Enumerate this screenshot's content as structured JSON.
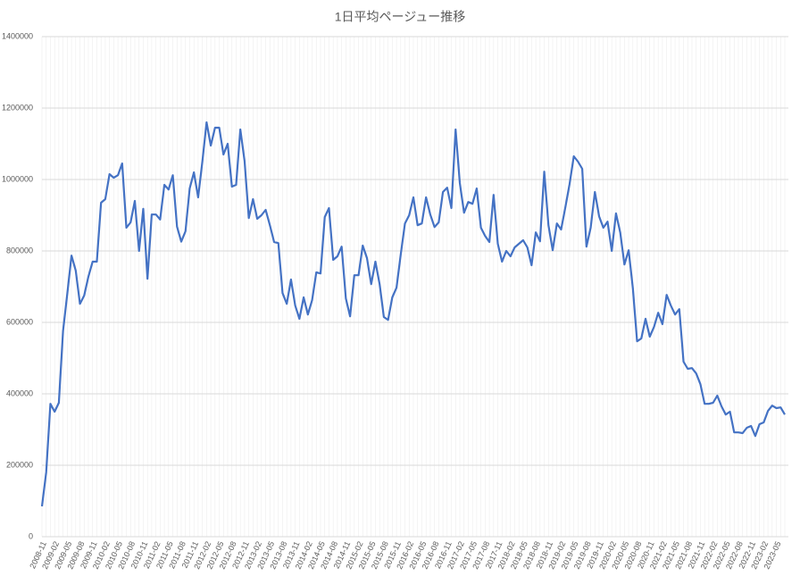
{
  "chart_data": {
    "type": "line",
    "title": "1日平均ページュー推移",
    "categories": [
      "2008-11",
      null,
      null,
      "2009-02",
      null,
      null,
      "2009-05",
      null,
      null,
      "2009-08",
      null,
      null,
      "2009-11",
      null,
      null,
      "2010-02",
      null,
      null,
      "2010-05",
      null,
      null,
      "2010-08",
      null,
      null,
      "2010-11",
      null,
      null,
      "2011-02",
      null,
      null,
      "2011-05",
      null,
      null,
      "2011-08",
      null,
      null,
      "2011-11",
      null,
      null,
      "2012-02",
      null,
      null,
      "2012-05",
      null,
      null,
      "2012-08",
      null,
      null,
      "2012-11",
      null,
      null,
      "2013-02",
      null,
      null,
      "2013-05",
      null,
      null,
      "2013-08",
      null,
      null,
      "2013-11",
      null,
      null,
      "2014-02",
      null,
      null,
      "2014-05",
      null,
      null,
      "2014-08",
      null,
      null,
      "2014-11",
      null,
      null,
      "2015-02",
      null,
      null,
      "2015-05",
      null,
      null,
      "2015-08",
      null,
      null,
      "2015-11",
      null,
      null,
      "2016-02",
      null,
      null,
      "2016-05",
      null,
      null,
      "2016-08",
      null,
      null,
      "2016-11",
      null,
      null,
      "2017-02",
      null,
      null,
      "2017-05",
      null,
      null,
      "2017-08",
      null,
      null,
      "2017-11",
      null,
      null,
      "2018-02",
      null,
      null,
      "2018-05",
      null,
      null,
      "2018-08",
      null,
      null,
      "2018-11",
      null,
      null,
      "2019-02",
      null,
      null,
      "2019-05",
      null,
      null,
      "2019-08",
      null,
      null,
      "2019-11",
      null,
      null,
      "2020-02",
      null,
      null,
      "2020-05",
      null,
      null,
      "2020-08",
      null,
      null,
      "2020-11",
      null,
      null,
      "2021-02",
      null,
      null,
      "2021-05",
      null,
      null,
      "2021-08",
      null,
      null,
      "2021-11",
      null,
      null,
      "2022-02",
      null,
      null,
      "2022-05",
      null,
      null,
      "2022-08",
      null,
      null,
      "2022-11",
      null,
      null,
      "2023-02",
      null,
      null,
      "2023-05",
      null,
      null
    ],
    "values": [
      85000,
      180000,
      372000,
      350000,
      375000,
      577000,
      680000,
      787000,
      745000,
      652000,
      675000,
      728000,
      770000,
      770000,
      935000,
      945000,
      1015000,
      1005000,
      1012000,
      1045000,
      865000,
      880000,
      940000,
      800000,
      918000,
      722000,
      902000,
      902000,
      888000,
      985000,
      972000,
      1012000,
      868000,
      826000,
      855000,
      975000,
      1020000,
      950000,
      1050000,
      1160000,
      1095000,
      1145000,
      1145000,
      1070000,
      1100000,
      980000,
      985000,
      1140000,
      1052000,
      892000,
      945000,
      890000,
      900000,
      915000,
      872000,
      825000,
      822000,
      682000,
      652000,
      720000,
      647000,
      610000,
      670000,
      622000,
      662000,
      740000,
      737000,
      895000,
      920000,
      775000,
      785000,
      812000,
      667000,
      617000,
      732000,
      732000,
      815000,
      780000,
      707000,
      770000,
      707000,
      615000,
      607000,
      670000,
      697000,
      790000,
      877000,
      900000,
      950000,
      872000,
      877000,
      950000,
      902000,
      867000,
      880000,
      965000,
      977000,
      920000,
      1140000,
      990000,
      907000,
      937000,
      932000,
      975000,
      865000,
      842000,
      825000,
      957000,
      820000,
      770000,
      800000,
      785000,
      810000,
      820000,
      830000,
      810000,
      760000,
      852000,
      827000,
      1022000,
      872000,
      802000,
      877000,
      860000,
      922000,
      987000,
      1065000,
      1050000,
      1030000,
      812000,
      865000,
      965000,
      897000,
      865000,
      882000,
      800000,
      905000,
      852000,
      762000,
      802000,
      695000,
      547000,
      555000,
      610000,
      560000,
      587000,
      627000,
      595000,
      677000,
      647000,
      622000,
      637000,
      490000,
      470000,
      472000,
      457000,
      427000,
      372000,
      372000,
      375000,
      395000,
      365000,
      342000,
      350000,
      292000,
      292000,
      290000,
      305000,
      310000,
      282000,
      315000,
      320000,
      352000,
      367000,
      360000,
      362000,
      342000
    ],
    "color": "#4472c4",
    "ylim": [
      0,
      1400000
    ],
    "yticks": [
      0,
      200000,
      400000,
      600000,
      800000,
      1000000,
      1200000,
      1400000
    ],
    "grid": true
  }
}
